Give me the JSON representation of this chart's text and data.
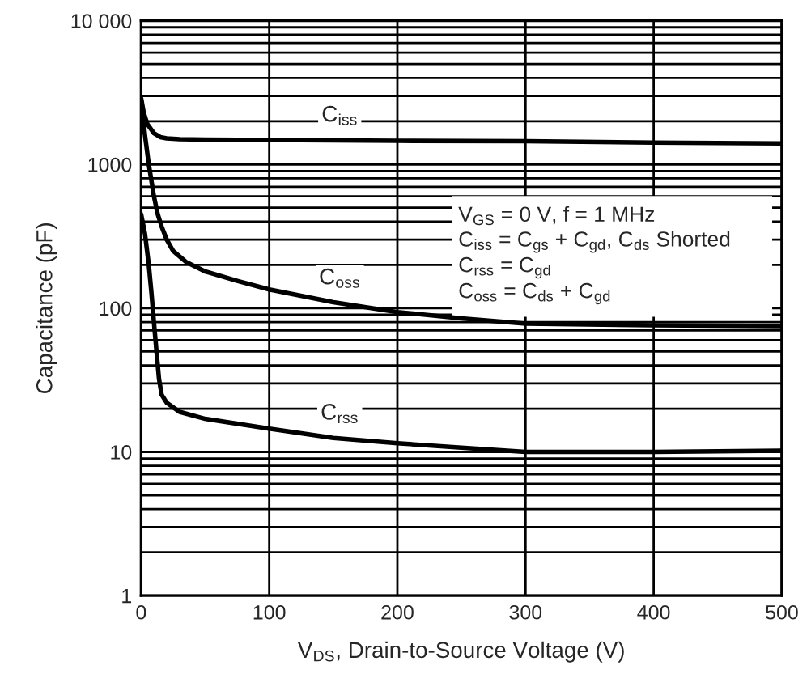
{
  "chart_data": {
    "type": "line",
    "xlabel": "V$_{DS}$, Drain-to-Source Voltage (V)",
    "ylabel": "Capacitance (pF)",
    "log": "y",
    "grid": true,
    "legend": false,
    "marker": "none",
    "line_style": "solid",
    "xlim": [
      0,
      500
    ],
    "xticks": [
      0,
      100,
      200,
      300,
      400,
      500
    ],
    "ylim": [
      1,
      10000
    ],
    "yticks": [
      1,
      10,
      100,
      1000,
      {
        "value": 10000,
        "label": "10 000"
      }
    ],
    "series": [
      {
        "name": "C$_{iss}$",
        "color": "#000000",
        "x": [
          0,
          2,
          5,
          10,
          15,
          20,
          30,
          50,
          100,
          200,
          300,
          400,
          500
        ],
        "values": [
          2900,
          2300,
          1900,
          1650,
          1550,
          1520,
          1500,
          1490,
          1480,
          1460,
          1450,
          1420,
          1400
        ]
      },
      {
        "name": "C$_{oss}$",
        "color": "#000000",
        "x": [
          0,
          3,
          6,
          10,
          13,
          16,
          20,
          25,
          35,
          50,
          75,
          100,
          150,
          200,
          250,
          300,
          400,
          500
        ],
        "values": [
          2800,
          1600,
          1000,
          600,
          450,
          370,
          300,
          250,
          210,
          180,
          155,
          135,
          110,
          94,
          85,
          78,
          76,
          75
        ]
      },
      {
        "name": "C$_{rss}$",
        "color": "#000000",
        "x": [
          0,
          3,
          6,
          8,
          10,
          12,
          14,
          16,
          20,
          30,
          50,
          100,
          150,
          200,
          250,
          300,
          400,
          500
        ],
        "values": [
          450,
          330,
          200,
          130,
          80,
          50,
          32,
          25,
          22,
          19,
          17,
          14.5,
          12.5,
          11.5,
          10.7,
          10,
          10,
          10.2
        ]
      }
    ],
    "annotations": [
      "V$_{GS}$ = 0 V, f = 1 MHz",
      "C$_{iss}$ = C$_{gs}$ + C$_{gd}$, C$_{ds}$ Shorted",
      "C$_{rss}$ = C$_{gd}$",
      "C$_{oss}$ = C$_{ds}$ + C$_{gd}$"
    ]
  }
}
